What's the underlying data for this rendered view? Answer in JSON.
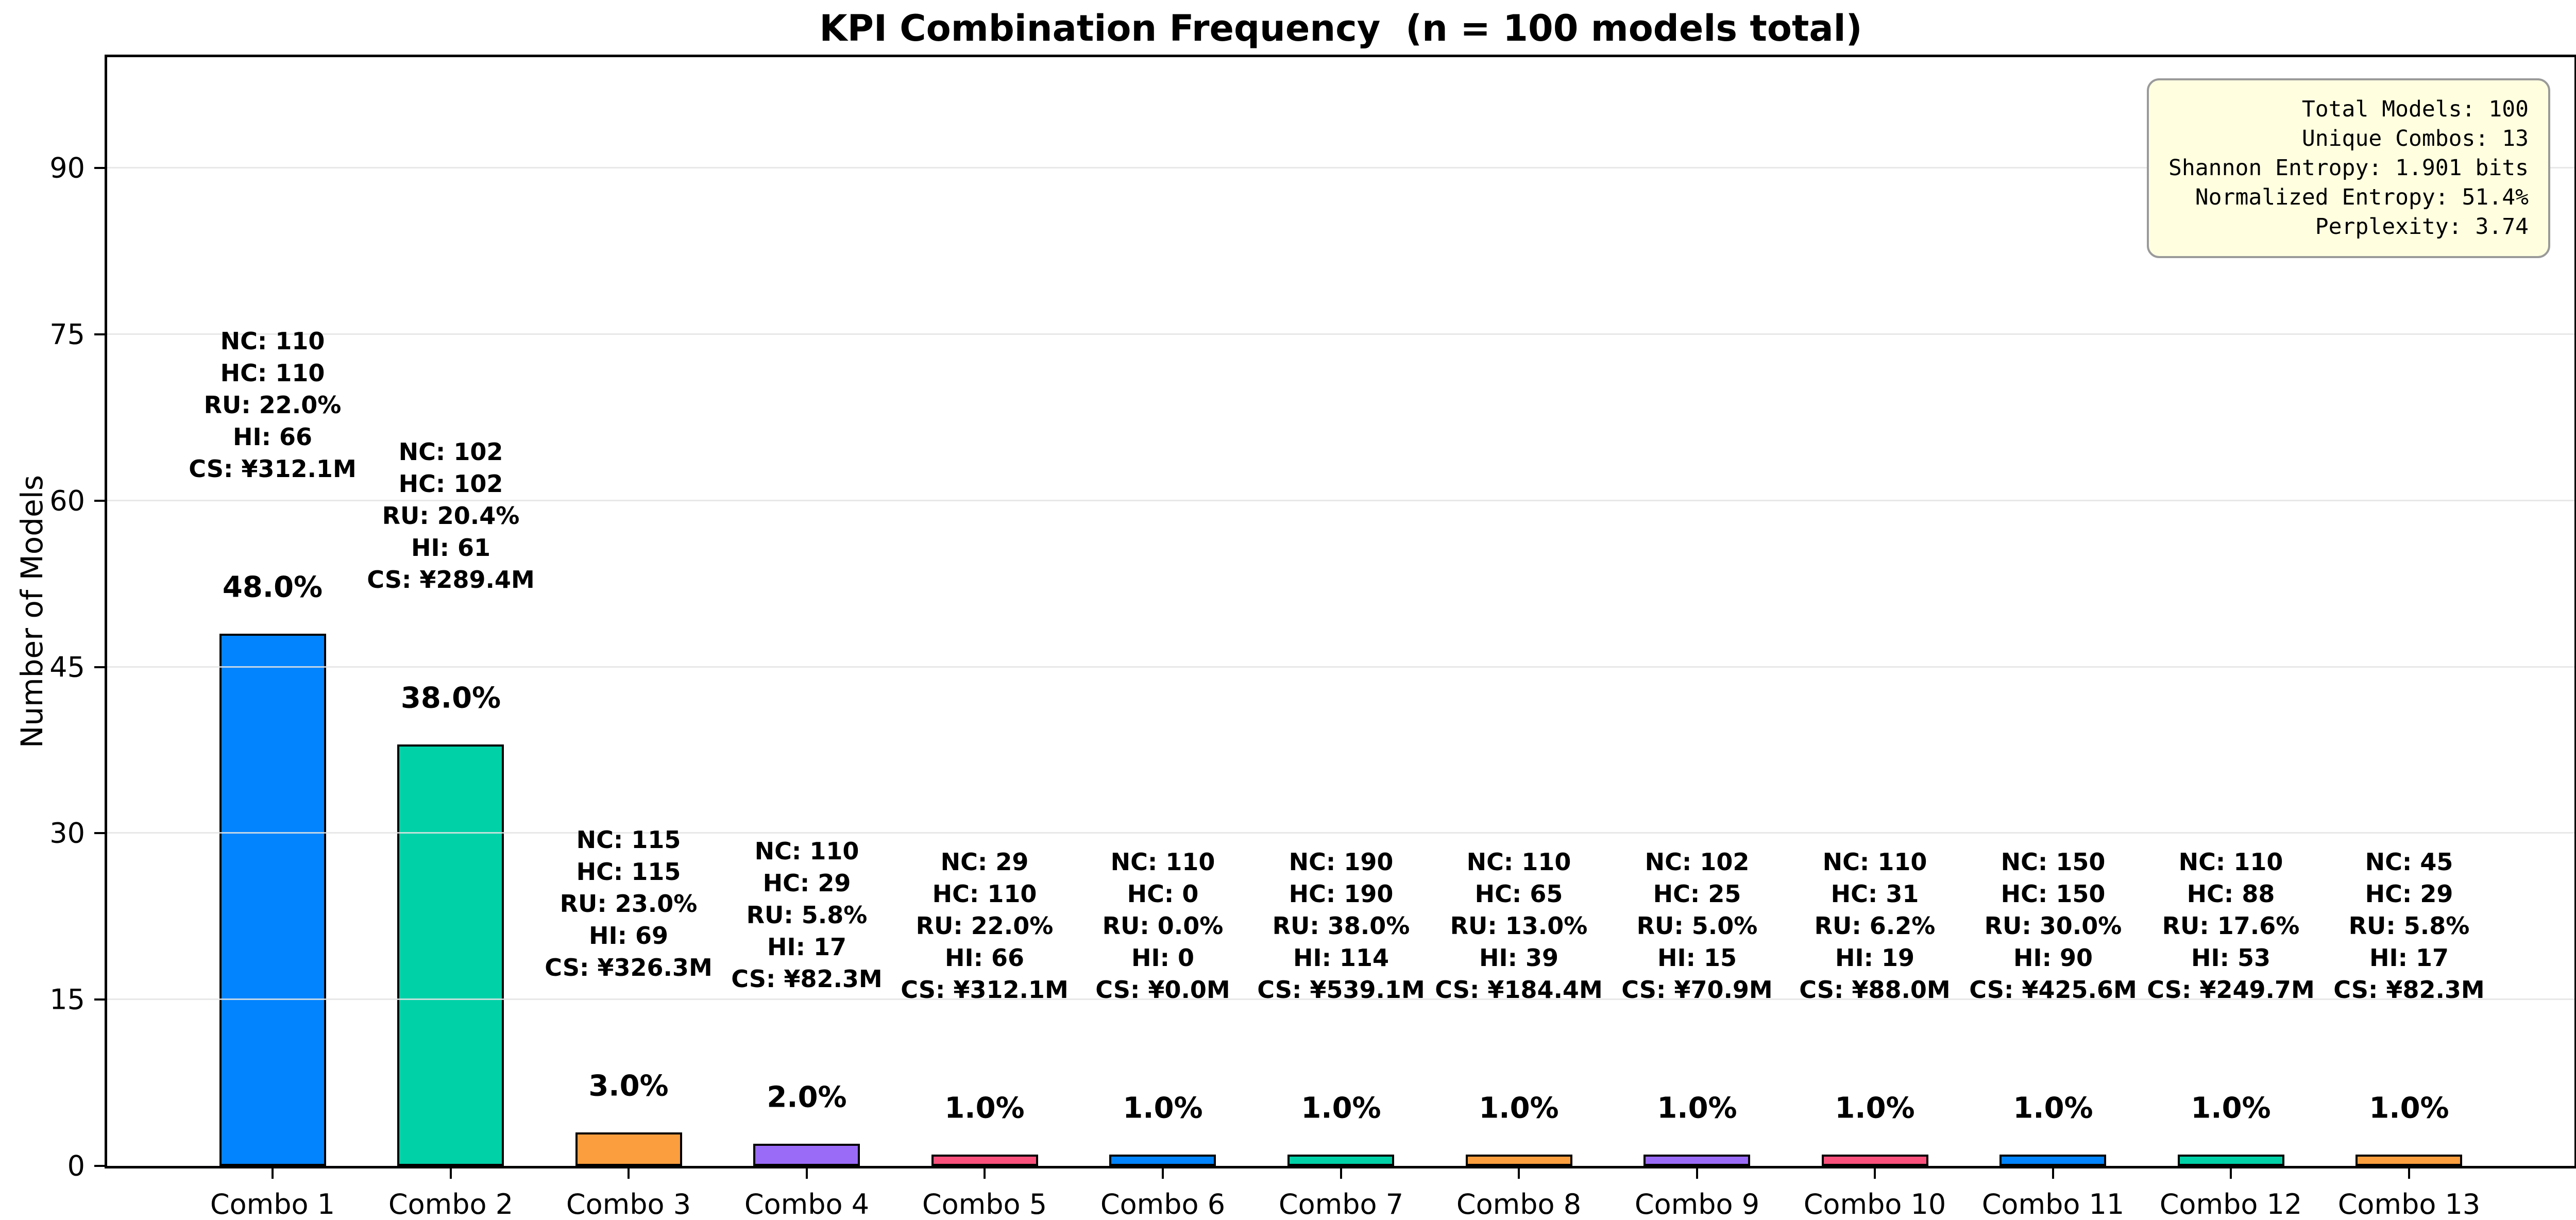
{
  "title": "KPI Combination Frequency  (n = 100 models total)",
  "ylabel": "Number of Models",
  "stats_box": {
    "lines": [
      "Total Models: 100",
      "Unique Combos: 13",
      "Shannon Entropy: 1.901 bits",
      "Normalized Entropy: 51.4%",
      "Perplexity: 3.74"
    ]
  },
  "chart_data": {
    "type": "bar",
    "title": "KPI Combination Frequency  (n = 100 models total)",
    "xlabel": "",
    "ylabel": "Number of Models",
    "categories": [
      "Combo 1",
      "Combo 2",
      "Combo 3",
      "Combo 4",
      "Combo 5",
      "Combo 6",
      "Combo 7",
      "Combo 8",
      "Combo 9",
      "Combo 10",
      "Combo 11",
      "Combo 12",
      "Combo 13"
    ],
    "values": [
      48,
      38,
      3,
      2,
      1,
      1,
      1,
      1,
      1,
      1,
      1,
      1,
      1
    ],
    "percent_labels": [
      "48.0%",
      "38.0%",
      "3.0%",
      "2.0%",
      "1.0%",
      "1.0%",
      "1.0%",
      "1.0%",
      "1.0%",
      "1.0%",
      "1.0%",
      "1.0%",
      "1.0%"
    ],
    "kpi_labels": [
      "NC",
      "HC",
      "RU",
      "HI",
      "CS"
    ],
    "kpi_values": [
      [
        "110",
        "110",
        "22.0%",
        "66",
        "¥312.1M"
      ],
      [
        "102",
        "102",
        "20.4%",
        "61",
        "¥289.4M"
      ],
      [
        "115",
        "115",
        "23.0%",
        "69",
        "¥326.3M"
      ],
      [
        "110",
        "29",
        "5.8%",
        "17",
        "¥82.3M"
      ],
      [
        "29",
        "110",
        "22.0%",
        "66",
        "¥312.1M"
      ],
      [
        "110",
        "0",
        "0.0%",
        "0",
        "¥0.0M"
      ],
      [
        "190",
        "190",
        "38.0%",
        "114",
        "¥539.1M"
      ],
      [
        "110",
        "65",
        "13.0%",
        "39",
        "¥184.4M"
      ],
      [
        "102",
        "25",
        "5.0%",
        "15",
        "¥70.9M"
      ],
      [
        "110",
        "31",
        "6.2%",
        "19",
        "¥88.0M"
      ],
      [
        "150",
        "150",
        "30.0%",
        "90",
        "¥425.6M"
      ],
      [
        "110",
        "88",
        "17.6%",
        "53",
        "¥249.7M"
      ],
      [
        "45",
        "29",
        "5.8%",
        "17",
        "¥82.3M"
      ]
    ],
    "bar_colors": [
      "#0284ff",
      "#00d1a7",
      "#fa9e3e",
      "#9a6bf7",
      "#fa517c",
      "#0284ff",
      "#00d1a7",
      "#fa9e3e",
      "#9a6bf7",
      "#fa517c",
      "#0284ff",
      "#00d1a7",
      "#fa9e3e"
    ],
    "bar_edge_color": "#000000",
    "ylim": [
      0,
      100
    ],
    "yticks": [
      0,
      15,
      30,
      45,
      60,
      75,
      90
    ],
    "grid": true,
    "legend": "none"
  },
  "colors": {
    "grid": "#e4e4e4",
    "stats_bg": "#ffffe0",
    "stats_border": "#9a9a9a"
  }
}
